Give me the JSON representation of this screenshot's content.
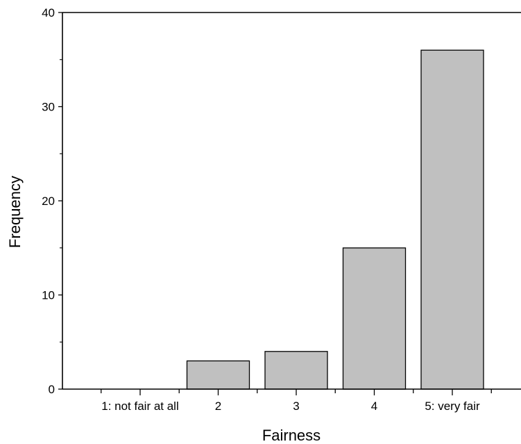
{
  "chart_data": {
    "type": "bar",
    "title": "",
    "xlabel": "Fairness",
    "ylabel": "Frequency",
    "categories": [
      "1: not fair at all",
      "2",
      "3",
      "4",
      "5: very fair"
    ],
    "values": [
      0,
      3,
      4,
      15,
      36
    ],
    "ylim": [
      0,
      40
    ],
    "yticks": [
      0,
      10,
      20,
      30,
      40
    ],
    "grid": false,
    "legend": "none",
    "colors": {
      "bar_fill": "#c0c0c0",
      "bar_stroke": "#000000",
      "axis": "#000000"
    }
  }
}
